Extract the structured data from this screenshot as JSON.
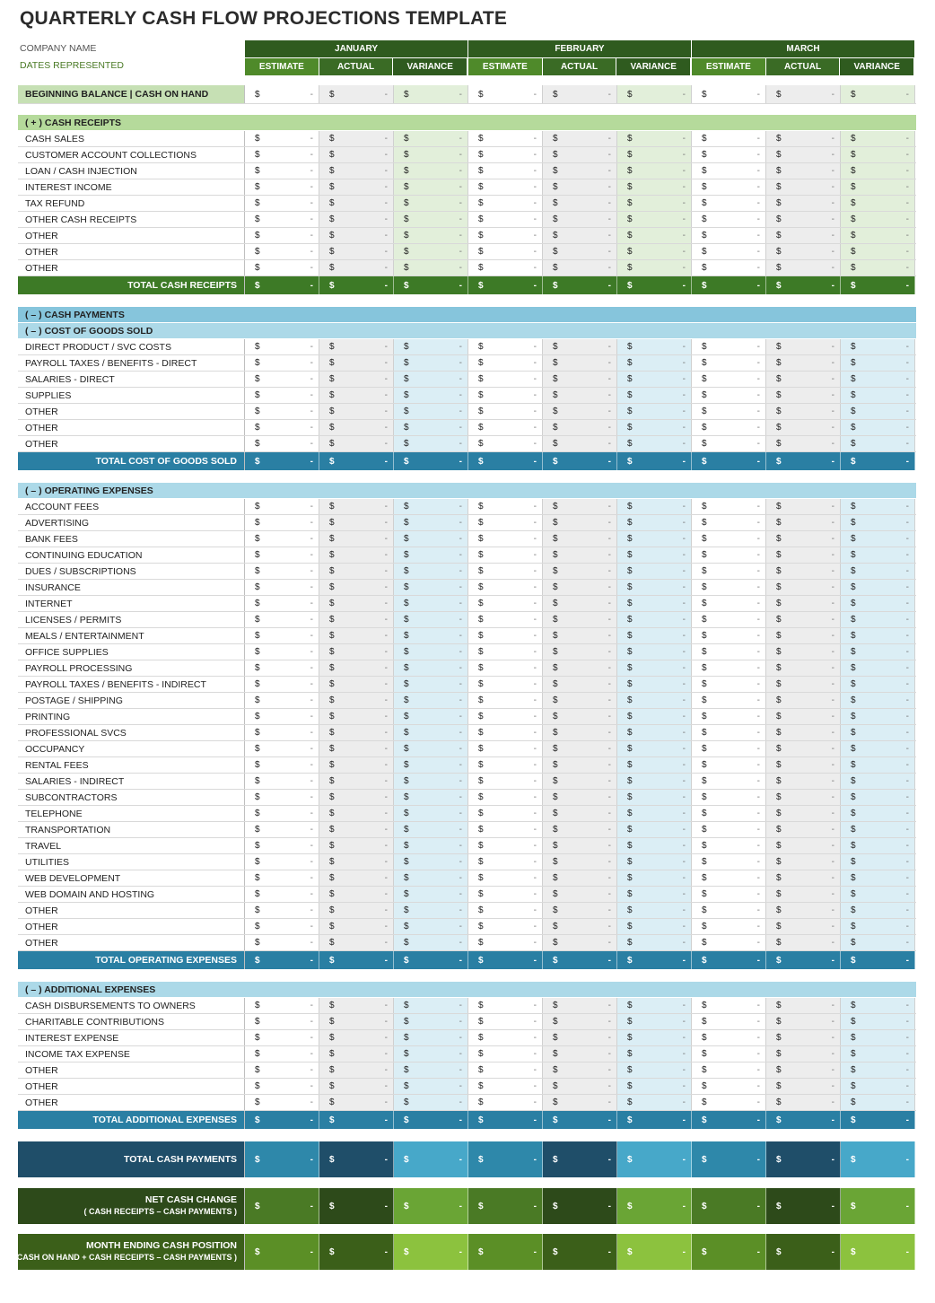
{
  "title": "QUARTERLY CASH FLOW PROJECTIONS TEMPLATE",
  "company_name_label": "COMPANY NAME",
  "dates_label": "DATES REPRESENTED",
  "months": [
    "JANUARY",
    "FEBRUARY",
    "MARCH"
  ],
  "subcolumns": [
    "ESTIMATE",
    "ACTUAL",
    "VARIANCE"
  ],
  "cell": {
    "currency": "$",
    "value": "-"
  },
  "beginning_balance": "BEGINNING BALANCE | CASH ON HAND",
  "receipts": {
    "header": "( + )  CASH RECEIPTS",
    "rows": [
      "CASH SALES",
      "CUSTOMER ACCOUNT COLLECTIONS",
      "LOAN / CASH INJECTION",
      "INTEREST INCOME",
      "TAX REFUND",
      "OTHER CASH RECEIPTS",
      "OTHER",
      "OTHER",
      "OTHER"
    ],
    "total": "TOTAL CASH RECEIPTS"
  },
  "payments_header": "( – )  CASH PAYMENTS",
  "cogs": {
    "header": "( – )  COST OF GOODS SOLD",
    "rows": [
      "DIRECT PRODUCT / SVC COSTS",
      "PAYROLL TAXES / BENEFITS - DIRECT",
      "SALARIES - DIRECT",
      "SUPPLIES",
      "OTHER",
      "OTHER",
      "OTHER"
    ],
    "total": "TOTAL COST OF GOODS SOLD"
  },
  "opex": {
    "header": "( – )  OPERATING EXPENSES",
    "rows": [
      "ACCOUNT FEES",
      "ADVERTISING",
      "BANK FEES",
      "CONTINUING EDUCATION",
      "DUES / SUBSCRIPTIONS",
      "INSURANCE",
      "INTERNET",
      "LICENSES / PERMITS",
      "MEALS / ENTERTAINMENT",
      "OFFICE SUPPLIES",
      "PAYROLL PROCESSING",
      "PAYROLL TAXES / BENEFITS - INDIRECT",
      "POSTAGE / SHIPPING",
      "PRINTING",
      "PROFESSIONAL SVCS",
      "OCCUPANCY",
      "RENTAL FEES",
      "SALARIES - INDIRECT",
      "SUBCONTRACTORS",
      "TELEPHONE",
      "TRANSPORTATION",
      "TRAVEL",
      "UTILITIES",
      "WEB DEVELOPMENT",
      "WEB DOMAIN AND HOSTING",
      "OTHER",
      "OTHER",
      "OTHER"
    ],
    "total": "TOTAL OPERATING EXPENSES"
  },
  "additional": {
    "header": "( – )  ADDITIONAL EXPENSES",
    "rows": [
      "CASH DISBURSEMENTS TO OWNERS",
      "CHARITABLE CONTRIBUTIONS",
      "INTEREST EXPENSE",
      "INCOME TAX EXPENSE",
      "OTHER",
      "OTHER",
      "OTHER"
    ],
    "total": "TOTAL ADDITIONAL EXPENSES"
  },
  "total_cash_payments": "TOTAL CASH PAYMENTS",
  "net_cash_change": {
    "label": "NET CASH CHANGE",
    "sub": "( CASH RECEIPTS – CASH PAYMENTS )"
  },
  "month_ending": {
    "label": "MONTH ENDING CASH POSITION",
    "sub": "( CASH ON HAND + CASH RECEIPTS – CASH PAYMENTS )"
  },
  "colors": {
    "dark_green": "#2f5b1f",
    "green": "#4f8a2a",
    "light_green": "#c6e0b4",
    "blue_header": "#86c5dc",
    "light_blue": "#acd9e8",
    "teal_total": "#2a7fa3",
    "navy": "#1f4e69"
  }
}
